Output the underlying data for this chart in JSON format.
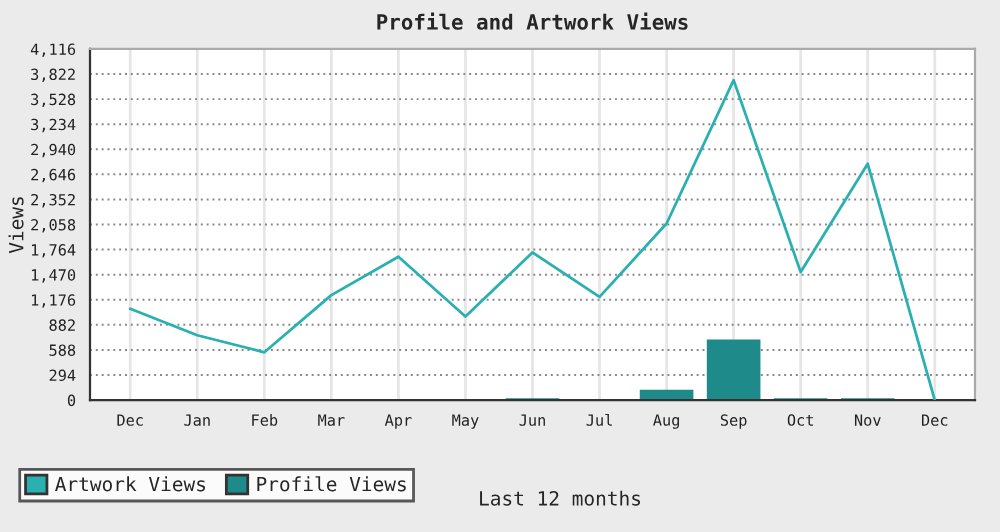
{
  "chart_data": {
    "type": "bar",
    "title": "Profile and Artwork Views",
    "xlabel": "Last 12 months",
    "ylabel": "Views",
    "categories": [
      "Dec",
      "Jan",
      "Feb",
      "Mar",
      "Apr",
      "May",
      "Jun",
      "Jul",
      "Aug",
      "Sep",
      "Oct",
      "Nov",
      "Dec"
    ],
    "series": [
      {
        "name": "Artwork Views",
        "type": "line",
        "color": "#2ab0b0",
        "values": [
          1070,
          760,
          560,
          1230,
          1680,
          980,
          1730,
          1210,
          2070,
          3750,
          1500,
          2770,
          0
        ]
      },
      {
        "name": "Profile Views",
        "color": "#1e8a8a",
        "values": [
          0,
          0,
          0,
          0,
          0,
          0,
          20,
          0,
          120,
          710,
          20,
          20,
          0
        ]
      }
    ],
    "ylim": [
      0,
      4116
    ],
    "yticks": [
      0,
      294,
      588,
      882,
      {
        "value": 1176,
        "label": "1,176"
      },
      {
        "value": 1470,
        "label": "1,470"
      },
      {
        "value": 1764,
        "label": "1,764"
      },
      {
        "value": 2058,
        "label": "2,058"
      },
      {
        "value": 2352,
        "label": "2,352"
      },
      {
        "value": 2646,
        "label": "2,646"
      },
      {
        "value": 2940,
        "label": "2,940"
      },
      {
        "value": 3234,
        "label": "3,234"
      },
      {
        "value": 3528,
        "label": "3,528"
      },
      {
        "value": 3822,
        "label": "3,822"
      },
      {
        "value": 4116,
        "label": "4,116"
      }
    ],
    "grid": true,
    "legend": "bottom left"
  }
}
